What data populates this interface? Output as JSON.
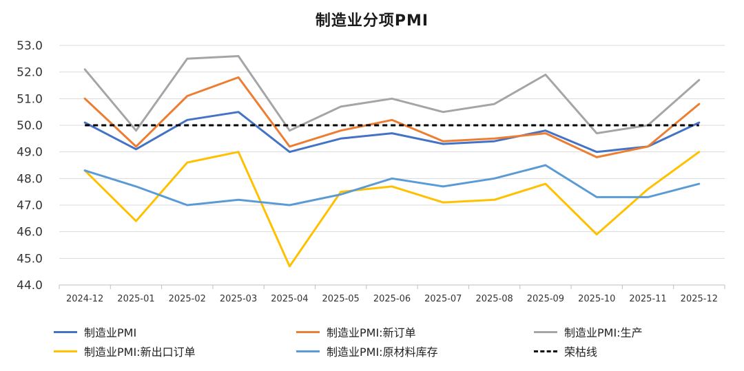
{
  "chart_data": {
    "type": "line",
    "title": "制造业分项PMI",
    "xlabel": "",
    "ylabel": "",
    "ylim": [
      44.0,
      53.0
    ],
    "yticks": [
      "44.0",
      "45.0",
      "46.0",
      "47.0",
      "48.0",
      "49.0",
      "50.0",
      "51.0",
      "52.0",
      "53.0"
    ],
    "categories": [
      "2024-12",
      "2025-01",
      "2025-02",
      "2025-03",
      "2025-04",
      "2025-05",
      "2025-06",
      "2025-07",
      "2025-08",
      "2025-09",
      "2025-10",
      "2025-11",
      "2025-12"
    ],
    "grid": true,
    "legend_position": "bottom",
    "series": [
      {
        "name": "制造业PMI",
        "color": "#4472C4",
        "dash": "solid",
        "values": [
          50.1,
          49.1,
          50.2,
          50.5,
          49.0,
          49.5,
          49.7,
          49.3,
          49.4,
          49.8,
          49.0,
          49.2,
          50.1
        ]
      },
      {
        "name": "制造业PMI:新订单",
        "color": "#ED7D31",
        "dash": "solid",
        "values": [
          51.0,
          49.2,
          51.1,
          51.8,
          49.2,
          49.8,
          50.2,
          49.4,
          49.5,
          49.7,
          48.8,
          49.2,
          50.8
        ]
      },
      {
        "name": "制造业PMI:生产",
        "color": "#A5A5A5",
        "dash": "solid",
        "values": [
          52.1,
          49.8,
          52.5,
          52.6,
          49.8,
          50.7,
          51.0,
          50.5,
          50.8,
          51.9,
          49.7,
          50.0,
          51.7
        ]
      },
      {
        "name": "制造业PMI:新出口订单",
        "color": "#FFC000",
        "dash": "solid",
        "values": [
          48.3,
          46.4,
          48.6,
          49.0,
          44.7,
          47.5,
          47.7,
          47.1,
          47.2,
          47.8,
          45.9,
          47.6,
          49.0
        ]
      },
      {
        "name": "制造业PMI:原材料库存",
        "color": "#5B9BD5",
        "dash": "solid",
        "values": [
          48.3,
          47.7,
          47.0,
          47.2,
          47.0,
          47.4,
          48.0,
          47.7,
          48.0,
          48.5,
          47.3,
          47.3,
          47.8
        ]
      },
      {
        "name": "荣枯线",
        "color": "#000000",
        "dash": "dashed",
        "values": [
          50.0,
          50.0,
          50.0,
          50.0,
          50.0,
          50.0,
          50.0,
          50.0,
          50.0,
          50.0,
          50.0,
          50.0,
          50.0
        ]
      }
    ]
  }
}
